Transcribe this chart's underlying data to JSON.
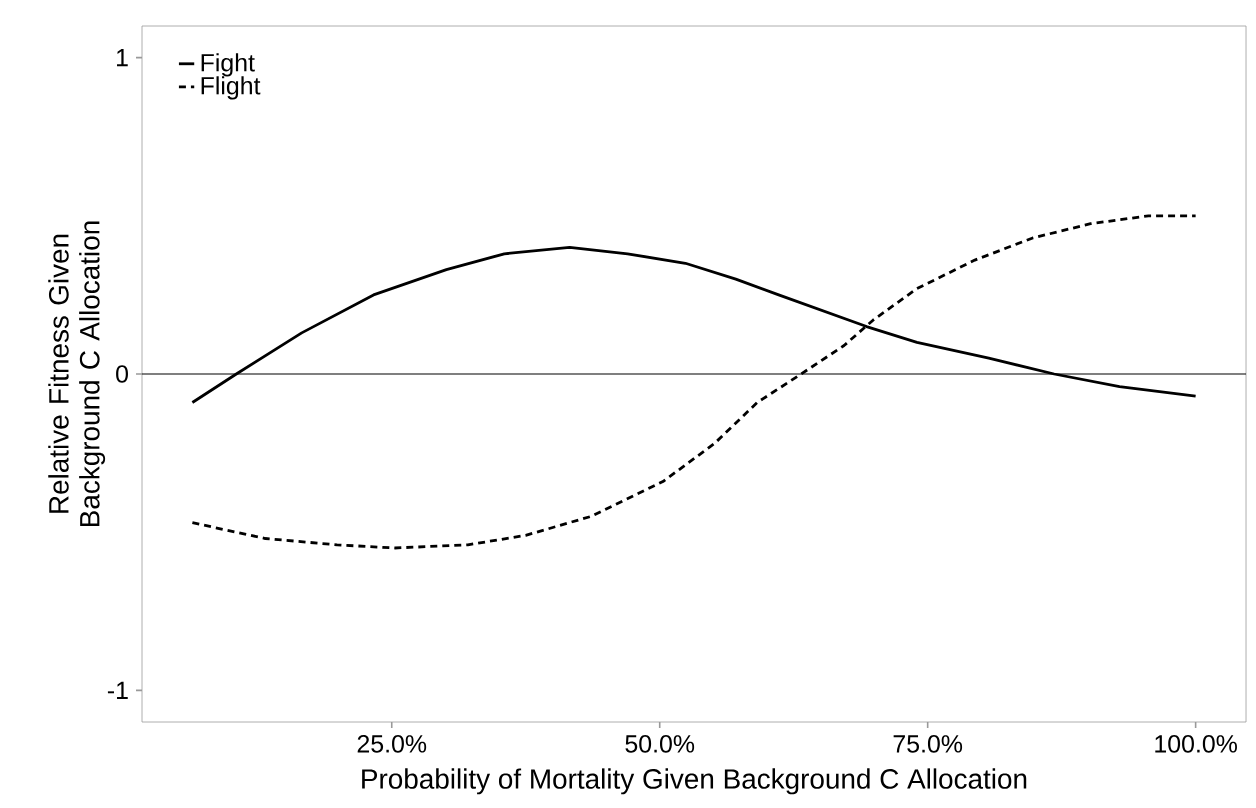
{
  "chart_data": {
    "type": "line",
    "xlabel": "Probability of Mortality Given Background C Allocation",
    "ylabel": "Relative Fitness Given Background C Allocation",
    "xlim": [
      1.7,
      104.7
    ],
    "ylim": [
      -1.1,
      1.1
    ],
    "xticks": [
      {
        "value": 25,
        "label": "25.0%"
      },
      {
        "value": 50,
        "label": "50.0%"
      },
      {
        "value": 75,
        "label": "75.0%"
      },
      {
        "value": 100,
        "label": "100.0%"
      }
    ],
    "yticks": [
      -1,
      0,
      1
    ],
    "grid": false,
    "legend": "top left",
    "marker": "none",
    "ref_lines": [
      {
        "axis": "y",
        "value": 0,
        "color": "#000000"
      }
    ],
    "series": [
      {
        "name": "Fight",
        "color": "#000000",
        "line_style": "solid",
        "x": [
          6.4,
          10.5,
          16.6,
          23.3,
          30.1,
          35.5,
          41.6,
          47.0,
          52.4,
          57.1,
          61.1,
          65.2,
          69.3,
          74.0,
          80.7,
          86.8,
          92.9,
          100
        ],
        "values": [
          -0.09,
          0,
          0.13,
          0.25,
          0.33,
          0.38,
          0.4,
          0.38,
          0.35,
          0.3,
          0.25,
          0.2,
          0.15,
          0.1,
          0.05,
          0,
          -0.04,
          -0.07
        ]
      },
      {
        "name": "Flight",
        "color": "#000000",
        "line_style": "dashed",
        "x": [
          6.4,
          13.2,
          19.9,
          25.3,
          32.1,
          37.5,
          43.6,
          50.3,
          55.1,
          59.1,
          63.2,
          67.2,
          69.9,
          74.0,
          79.4,
          84.8,
          90.2,
          95.6,
          100
        ],
        "values": [
          -0.47,
          -0.52,
          -0.54,
          -0.55,
          -0.54,
          -0.51,
          -0.45,
          -0.34,
          -0.22,
          -0.09,
          0,
          0.09,
          0.17,
          0.27,
          0.36,
          0.43,
          0.475,
          0.5,
          0.5
        ]
      }
    ]
  }
}
